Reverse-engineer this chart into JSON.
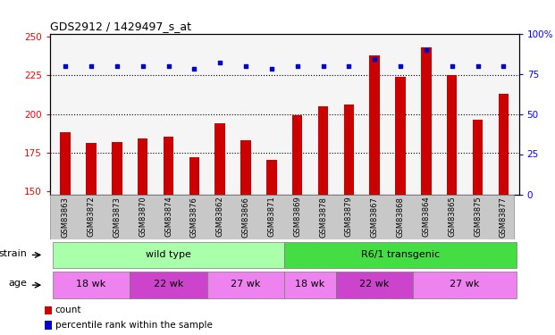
{
  "title": "GDS2912 / 1429497_s_at",
  "samples": [
    "GSM83863",
    "GSM83872",
    "GSM83873",
    "GSM83870",
    "GSM83874",
    "GSM83876",
    "GSM83862",
    "GSM83866",
    "GSM83871",
    "GSM83869",
    "GSM83878",
    "GSM83879",
    "GSM83867",
    "GSM83868",
    "GSM83864",
    "GSM83865",
    "GSM83875",
    "GSM83877"
  ],
  "counts": [
    188,
    181,
    182,
    184,
    185,
    172,
    194,
    183,
    170,
    199,
    205,
    206,
    238,
    224,
    243,
    225,
    196,
    213
  ],
  "percentiles": [
    80,
    80,
    80,
    80,
    80,
    78,
    82,
    80,
    78,
    80,
    80,
    80,
    84,
    80,
    90,
    80,
    80,
    80
  ],
  "ylim_left": [
    148,
    252
  ],
  "ylim_right": [
    0,
    100
  ],
  "yticks_left": [
    150,
    175,
    200,
    225,
    250
  ],
  "yticks_right": [
    0,
    25,
    50,
    75,
    100
  ],
  "bar_color": "#cc0000",
  "percentile_color": "#0000cc",
  "bar_width": 0.4,
  "dotted_lines": [
    175,
    200,
    225
  ],
  "bg_color": "#ffffff",
  "plot_bg": "#f5f5f5",
  "strain_groups": [
    {
      "label": "wild type",
      "start": 0,
      "end": 9,
      "color": "#aaffaa"
    },
    {
      "label": "R6/1 transgenic",
      "start": 9,
      "end": 18,
      "color": "#44dd44"
    }
  ],
  "age_groups": [
    {
      "label": "18 wk",
      "start": 0,
      "end": 3,
      "color": "#ee82ee"
    },
    {
      "label": "22 wk",
      "start": 3,
      "end": 6,
      "color": "#cc44cc"
    },
    {
      "label": "27 wk",
      "start": 6,
      "end": 9,
      "color": "#ee82ee"
    },
    {
      "label": "18 wk",
      "start": 9,
      "end": 11,
      "color": "#ee82ee"
    },
    {
      "label": "22 wk",
      "start": 11,
      "end": 14,
      "color": "#cc44cc"
    },
    {
      "label": "27 wk",
      "start": 14,
      "end": 18,
      "color": "#ee82ee"
    }
  ],
  "legend_items": [
    {
      "label": "count",
      "color": "#cc0000"
    },
    {
      "label": "percentile rank within the sample",
      "color": "#0000cc"
    }
  ]
}
